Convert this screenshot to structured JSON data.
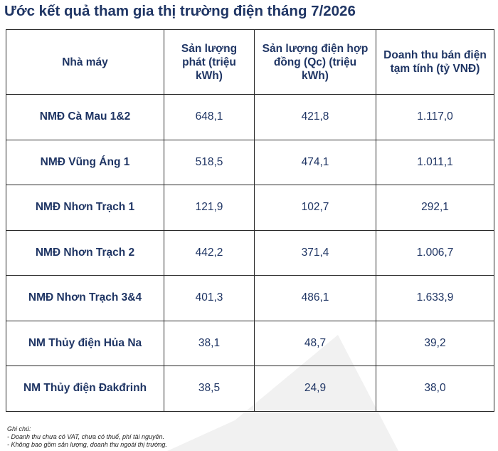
{
  "title": "Ước kết quả tham gia thị trường điện tháng 7/2026",
  "table": {
    "headers": [
      "Nhà máy",
      "Sản lượng phát (triệu kWh)",
      "Sản lượng điện hợp đồng (Qc) (triệu kWh)",
      "Doanh thu bán điện tạm tính (tỷ VNĐ)"
    ],
    "rows": [
      [
        "NMĐ Cà Mau 1&2",
        "648,1",
        "421,8",
        "1.117,0"
      ],
      [
        "NMĐ Vũng Áng 1",
        "518,5",
        "474,1",
        "1.011,1"
      ],
      [
        "NMĐ Nhơn Trạch 1",
        "121,9",
        "102,7",
        "292,1"
      ],
      [
        "NMĐ Nhơn Trạch 2",
        "442,2",
        "371,4",
        "1.006,7"
      ],
      [
        "NMĐ Nhơn Trạch 3&4",
        "401,3",
        "486,1",
        "1.633,9"
      ],
      [
        "NM Thủy điện Hủa Na",
        "38,1",
        "48,7",
        "39,2"
      ],
      [
        "NM Thủy điện Đakđrinh",
        "38,5",
        "24,9",
        "38,0"
      ]
    ]
  },
  "notes": {
    "heading": "Ghi chú:",
    "lines": [
      "- Doanh thu chưa có VAT, chưa có thuế, phí tài nguyên.",
      "- Không bao gồm sản lượng, doanh thu ngoài thị trường."
    ]
  },
  "colors": {
    "text": "#1f3564",
    "border": "#2a2a2a",
    "watermark": "#e9e9e9"
  }
}
